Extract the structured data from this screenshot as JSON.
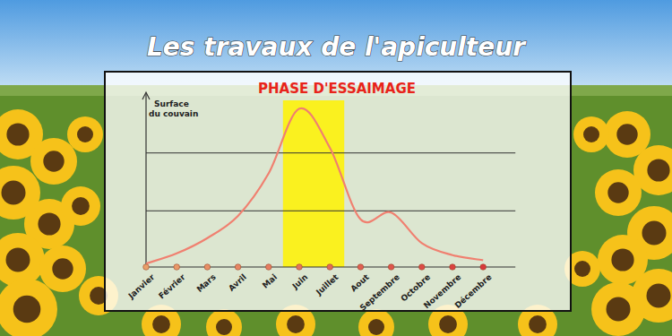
{
  "header": {
    "title": "Les travaux de l'apiculteur"
  },
  "chart_data": {
    "type": "line",
    "y_label": "Surface du couvain",
    "categories": [
      "Janvier",
      "Février",
      "Mars",
      "Avril",
      "Mai",
      "Juin",
      "Juillet",
      "Aout",
      "Septembre",
      "Octobre",
      "Novembre",
      "Décembre"
    ],
    "values": [
      2,
      8,
      17,
      30,
      55,
      93,
      70,
      28,
      32,
      14,
      7,
      4
    ],
    "color": "#f08070",
    "ylim": [
      0,
      100
    ],
    "yticks": [
      33,
      67
    ],
    "grid": true,
    "tick_labels": "x",
    "annotations": [
      {
        "text": "PHASE D'ESSAIMAGE",
        "from": "Mai",
        "to": "Juillet"
      }
    ]
  }
}
